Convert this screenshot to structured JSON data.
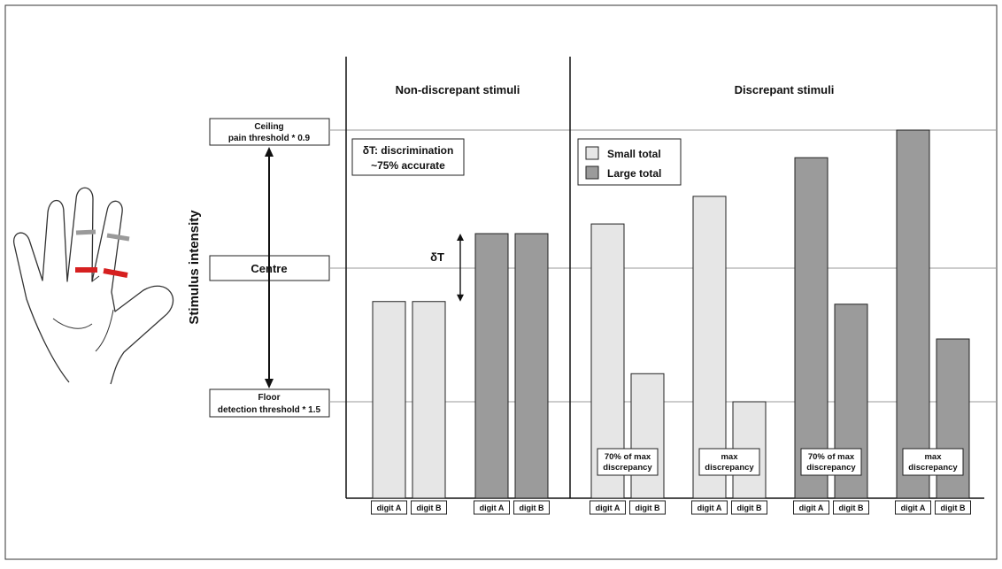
{
  "colors": {
    "small_total": "#e6e6e6",
    "large_total": "#9b9b9b",
    "bar_stroke": "#222222",
    "gridline": "#9a9a9a",
    "axis": "#111111",
    "ring_red": "#d62020",
    "ring_grey": "#9a9a9a"
  },
  "left": {
    "ylabel": "Stimulus intensity",
    "ceiling_line1": "Ceiling",
    "ceiling_line2": "pain threshold * 0.9",
    "centre": "Centre",
    "floor_line1": "Floor",
    "floor_line2": "detection threshold * 1.5"
  },
  "panels": {
    "non_discrepant_title": "Non-discrepant stimuli",
    "discrepant_title": "Discrepant stimuli"
  },
  "annotations": {
    "dt_box_line1": "δT: discrimination",
    "dt_box_line2": "~75% accurate",
    "dt_label": "δT"
  },
  "legend": {
    "small_total": "Small total",
    "large_total": "Large total"
  },
  "chart_data": {
    "type": "bar",
    "levels": {
      "floor": 0,
      "centre": 1,
      "ceiling": 2
    },
    "groups": [
      {
        "panel": "non-discrepant",
        "total": "small",
        "note": "",
        "bars": [
          {
            "label": "digit A",
            "value": 0.75
          },
          {
            "label": "digit B",
            "value": 0.75
          }
        ]
      },
      {
        "panel": "non-discrepant",
        "total": "large",
        "note": "",
        "bars": [
          {
            "label": "digit A",
            "value": 1.25
          },
          {
            "label": "digit B",
            "value": 1.25
          }
        ]
      },
      {
        "panel": "discrepant",
        "total": "small",
        "note": "70% of max discrepancy",
        "note_lines": [
          "70% of max",
          "discrepancy"
        ],
        "bars": [
          {
            "label": "digit A",
            "value": 1.32
          },
          {
            "label": "digit B",
            "value": 0.21
          }
        ]
      },
      {
        "panel": "discrepant",
        "total": "small",
        "note": "max discrepancy",
        "note_lines": [
          "max",
          "discrepancy"
        ],
        "bars": [
          {
            "label": "digit A",
            "value": 1.52
          },
          {
            "label": "digit B",
            "value": 0.0
          }
        ]
      },
      {
        "panel": "discrepant",
        "total": "large",
        "note": "70% of max discrepancy",
        "note_lines": [
          "70% of max",
          "discrepancy"
        ],
        "bars": [
          {
            "label": "digit A",
            "value": 1.8
          },
          {
            "label": "digit B",
            "value": 0.73
          }
        ]
      },
      {
        "panel": "discrepant",
        "total": "large",
        "note": "max discrepancy",
        "note_lines": [
          "max",
          "discrepancy"
        ],
        "bars": [
          {
            "label": "digit A",
            "value": 2.0
          },
          {
            "label": "digit B",
            "value": 0.47
          }
        ]
      }
    ]
  }
}
